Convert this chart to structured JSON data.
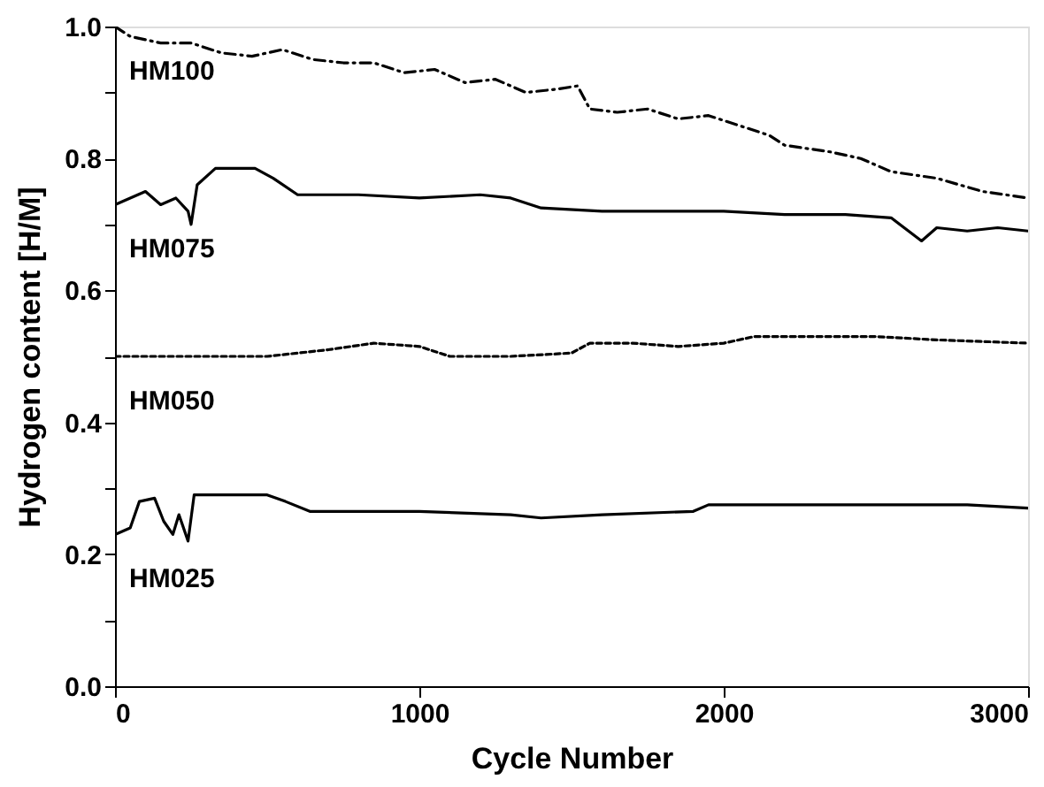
{
  "chart_data": {
    "type": "line",
    "xlabel": "Cycle Number",
    "ylabel": "Hydrogen content [H/M]",
    "xlim": [
      0,
      3000
    ],
    "xticks": [
      0,
      1000,
      2000,
      3000
    ],
    "ylim": [
      0,
      1.0
    ],
    "yticks": [
      {
        "value": 0,
        "label": "0.0"
      },
      {
        "value": 0.1,
        "label": null
      },
      {
        "value": 0.2,
        "label": "0.2"
      },
      {
        "value": 0.3,
        "label": null
      },
      {
        "value": 0.4,
        "label": "0.4"
      },
      {
        "value": 0.5,
        "label": null
      },
      {
        "value": 0.6,
        "label": "0.6"
      },
      {
        "value": 0.7,
        "label": null
      },
      {
        "value": 0.8,
        "label": "0.8"
      },
      {
        "value": 0.9,
        "label": null
      },
      {
        "value": 1.0,
        "label": "1.0"
      }
    ],
    "grid": false,
    "marker": "none",
    "series": [
      {
        "name": "HM100",
        "color": "#000000",
        "line_style": "dashed",
        "x": [
          0,
          50,
          150,
          250,
          350,
          450,
          550,
          650,
          750,
          850,
          950,
          1050,
          1150,
          1250,
          1350,
          1450,
          1520,
          1560,
          1650,
          1750,
          1850,
          1950,
          2050,
          2150,
          2200,
          2350,
          2450,
          2550,
          2700,
          2850,
          3000
        ],
        "values": [
          1.0,
          0.985,
          0.975,
          0.975,
          0.96,
          0.955,
          0.965,
          0.95,
          0.945,
          0.945,
          0.93,
          0.935,
          0.915,
          0.92,
          0.9,
          0.905,
          0.91,
          0.875,
          0.87,
          0.875,
          0.86,
          0.865,
          0.85,
          0.835,
          0.82,
          0.81,
          0.8,
          0.78,
          0.77,
          0.75,
          0.74
        ]
      },
      {
        "name": "HM075",
        "color": "#000000",
        "line_style": "solid",
        "x": [
          0,
          50,
          100,
          150,
          200,
          240,
          250,
          270,
          330,
          460,
          520,
          600,
          800,
          1000,
          1200,
          1300,
          1400,
          1600,
          1800,
          2000,
          2200,
          2400,
          2550,
          2650,
          2700,
          2800,
          2900,
          3000
        ],
        "values": [
          0.73,
          0.74,
          0.75,
          0.73,
          0.74,
          0.72,
          0.7,
          0.76,
          0.785,
          0.785,
          0.77,
          0.745,
          0.745,
          0.74,
          0.745,
          0.74,
          0.725,
          0.72,
          0.72,
          0.72,
          0.715,
          0.715,
          0.71,
          0.675,
          0.695,
          0.69,
          0.695,
          0.69
        ]
      },
      {
        "name": "HM050",
        "color": "#000000",
        "line_style": "dotted",
        "x": [
          0,
          500,
          700,
          850,
          1000,
          1100,
          1300,
          1500,
          1560,
          1700,
          1850,
          2000,
          2100,
          2500,
          2700,
          3000
        ],
        "values": [
          0.5,
          0.5,
          0.51,
          0.52,
          0.515,
          0.5,
          0.5,
          0.505,
          0.52,
          0.52,
          0.515,
          0.52,
          0.53,
          0.53,
          0.525,
          0.52
        ]
      },
      {
        "name": "HM025",
        "color": "#000000",
        "line_style": "solid",
        "x": [
          0,
          50,
          80,
          130,
          160,
          190,
          210,
          240,
          260,
          500,
          560,
          640,
          900,
          1000,
          1300,
          1400,
          1600,
          1900,
          1950,
          2400,
          2800,
          3000
        ],
        "values": [
          0.23,
          0.24,
          0.28,
          0.285,
          0.25,
          0.23,
          0.26,
          0.22,
          0.29,
          0.29,
          0.28,
          0.265,
          0.265,
          0.265,
          0.26,
          0.255,
          0.26,
          0.265,
          0.275,
          0.275,
          0.275,
          0.27
        ]
      }
    ]
  }
}
